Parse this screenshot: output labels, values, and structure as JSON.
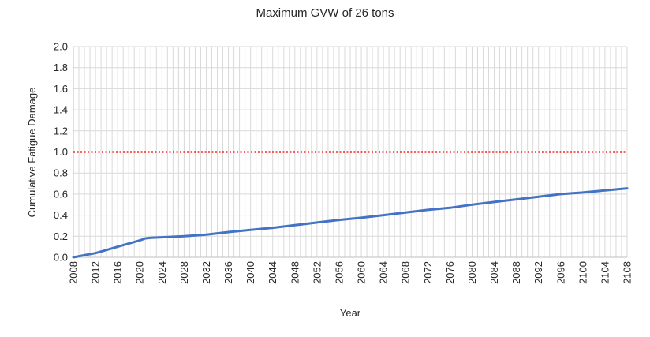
{
  "chart_data": {
    "type": "line",
    "title": "Maximum GVW of 26 tons",
    "xlabel": "Year",
    "ylabel": "Cumulative Fatigue Damage",
    "xlim": [
      2008,
      2108
    ],
    "ylim": [
      0,
      2.0
    ],
    "x_ticks": [
      2008,
      2012,
      2016,
      2020,
      2024,
      2028,
      2032,
      2036,
      2040,
      2044,
      2048,
      2052,
      2056,
      2060,
      2064,
      2068,
      2072,
      2076,
      2080,
      2084,
      2088,
      2092,
      2096,
      2100,
      2104,
      2108
    ],
    "y_ticks": [
      0.0,
      0.2,
      0.4,
      0.6,
      0.8,
      1.0,
      1.2,
      1.4,
      1.6,
      1.8,
      2.0
    ],
    "grid": true,
    "series": [
      {
        "color": "#4472c4",
        "x": [
          2008,
          2010,
          2012,
          2014,
          2016,
          2018,
          2020,
          2021,
          2022,
          2024,
          2028,
          2032,
          2036,
          2040,
          2044,
          2048,
          2052,
          2056,
          2060,
          2064,
          2068,
          2072,
          2076,
          2080,
          2084,
          2088,
          2092,
          2096,
          2100,
          2104,
          2108
        ],
        "values": [
          0.0,
          0.02,
          0.04,
          0.07,
          0.1,
          0.13,
          0.16,
          0.18,
          0.185,
          0.19,
          0.2,
          0.215,
          0.24,
          0.26,
          0.28,
          0.305,
          0.33,
          0.355,
          0.375,
          0.4,
          0.425,
          0.45,
          0.47,
          0.5,
          0.525,
          0.55,
          0.575,
          0.6,
          0.615,
          0.635,
          0.655
        ]
      }
    ],
    "reference_line": {
      "value": 1.0,
      "color": "#ff0000",
      "style": "dotted"
    }
  }
}
